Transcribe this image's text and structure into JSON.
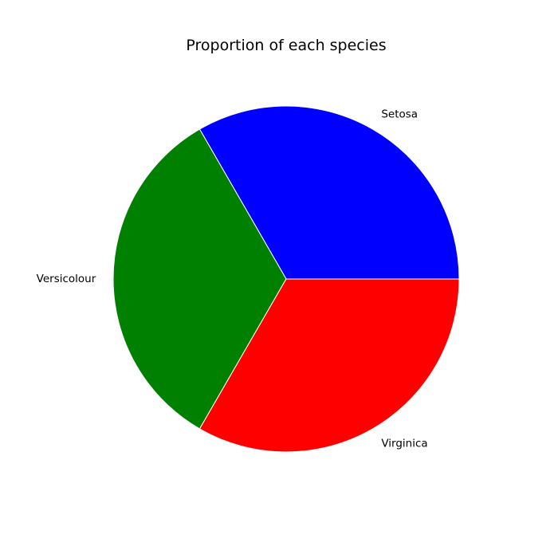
{
  "chart_data": {
    "type": "pie",
    "title": "Proportion of each species",
    "labels": [
      "Setosa",
      "Versicolour",
      "Virginica"
    ],
    "values": [
      50,
      50,
      50
    ],
    "colors": [
      "#0000ff",
      "#008000",
      "#ff0000"
    ],
    "start_angle_degrees": 0,
    "direction": "counterclockwise",
    "legend": "none"
  }
}
